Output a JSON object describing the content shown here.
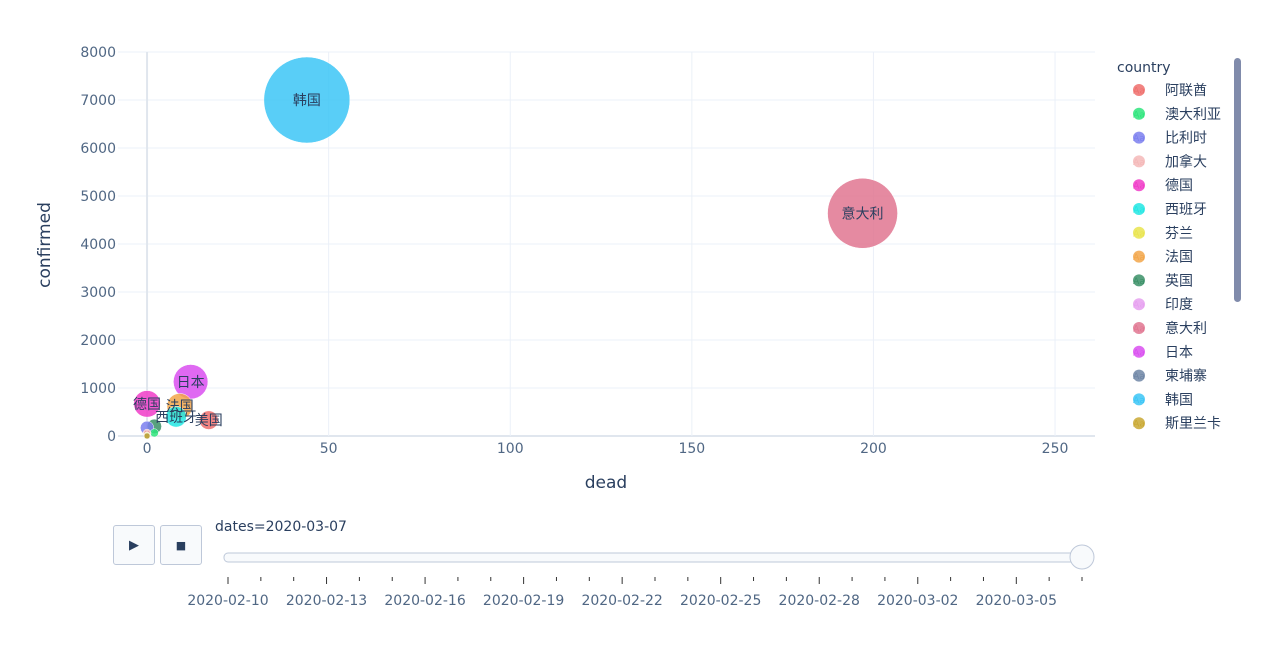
{
  "chart_data": {
    "type": "scatter",
    "xlabel": "dead",
    "ylabel": "confirmed",
    "xlim": [
      -8,
      261
    ],
    "ylim": [
      0,
      8000
    ],
    "x_ticks": [
      0,
      50,
      100,
      150,
      200,
      250
    ],
    "y_ticks": [
      0,
      1000,
      2000,
      3000,
      4000,
      5000,
      6000,
      7000,
      8000
    ],
    "grid": true,
    "legend_title": "country",
    "legend_position": "right",
    "series": [
      {
        "name": "阿联酋",
        "color": "#ef6f6c",
        "points": [
          {
            "x": 0,
            "y": 45
          }
        ]
      },
      {
        "name": "澳大利亚",
        "color": "#2ee57c",
        "points": [
          {
            "x": 2,
            "y": 65
          }
        ]
      },
      {
        "name": "比利时",
        "color": "#7b7fef",
        "points": [
          {
            "x": 0,
            "y": 170
          }
        ]
      },
      {
        "name": "加拿大",
        "color": "#f4b8b8",
        "points": [
          {
            "x": 0,
            "y": 60
          }
        ]
      },
      {
        "name": "德国",
        "color": "#f03cc8",
        "points": [
          {
            "x": 0,
            "y": 670
          }
        ]
      },
      {
        "name": "西班牙",
        "color": "#22e6e3",
        "points": [
          {
            "x": 8,
            "y": 400
          }
        ]
      },
      {
        "name": "芬兰",
        "color": "#e9e44e",
        "points": [
          {
            "x": 0,
            "y": 20
          }
        ]
      },
      {
        "name": "法国",
        "color": "#f2a64a",
        "points": [
          {
            "x": 9,
            "y": 620
          }
        ]
      },
      {
        "name": "英国",
        "color": "#3b9067",
        "points": [
          {
            "x": 2,
            "y": 200
          }
        ]
      },
      {
        "name": "印度",
        "color": "#e6a0f0",
        "points": [
          {
            "x": 0,
            "y": 30
          }
        ]
      },
      {
        "name": "意大利",
        "color": "#e17591",
        "points": [
          {
            "x": 197,
            "y": 4640
          }
        ]
      },
      {
        "name": "日本",
        "color": "#d94ff0",
        "points": [
          {
            "x": 12,
            "y": 1130
          }
        ]
      },
      {
        "name": "柬埔寨",
        "color": "#6f86a6",
        "points": [
          {
            "x": 0,
            "y": 1
          }
        ]
      },
      {
        "name": "韩国",
        "color": "#3cc5f6",
        "points": [
          {
            "x": 44,
            "y": 7000
          }
        ]
      },
      {
        "name": "斯里兰卡",
        "color": "#c9a832",
        "points": [
          {
            "x": 0,
            "y": 1
          }
        ]
      },
      {
        "name": "美国",
        "color": "#ef6f6c",
        "points": [
          {
            "x": 17,
            "y": 330
          }
        ]
      }
    ],
    "visible_point_labels": [
      "韩国",
      "意大利",
      "日本",
      "德国",
      "法国",
      "美国",
      "西班牙"
    ]
  },
  "slider": {
    "current_label": "dates=2020-03-07",
    "tick_labels": [
      "2020-02-10",
      "2020-02-13",
      "2020-02-16",
      "2020-02-19",
      "2020-02-22",
      "2020-02-25",
      "2020-02-28",
      "2020-03-02",
      "2020-03-05"
    ],
    "total_steps": 27,
    "selected_index": 26
  },
  "controls": {
    "play_icon": "play-icon",
    "stop_icon": "stop-icon",
    "play_glyph": "▶",
    "stop_glyph": "■"
  }
}
